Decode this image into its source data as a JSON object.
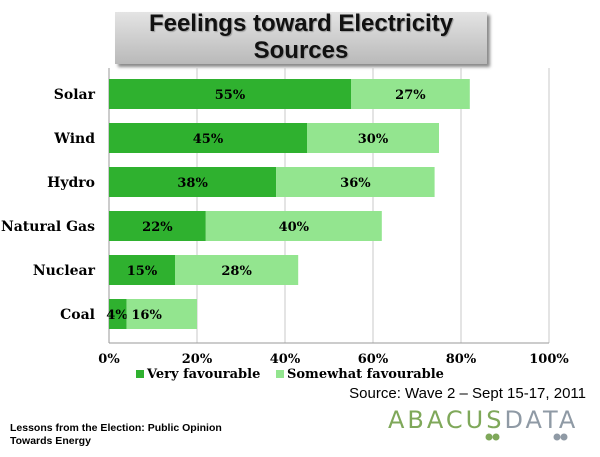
{
  "title": "Feelings toward Electricity Sources",
  "source": "Source: Wave 2 – Sept 15-17, 2011",
  "footer": "Lessons from the Election: Public Opinion Towards Energy",
  "logo": {
    "left": "ABACUS",
    "right": "DATA"
  },
  "colors": {
    "very": "#2fb12f",
    "somewhat": "#93e58f",
    "title_bg": "#c8c8c8",
    "logo_green": "#7fa85a",
    "logo_gray": "#8f9aa5"
  },
  "chart_data": {
    "type": "bar",
    "orientation": "horizontal",
    "stacked": true,
    "title": "Feelings toward Electricity Sources",
    "categories": [
      "Solar",
      "Wind",
      "Hydro",
      "Natural Gas",
      "Nuclear",
      "Coal"
    ],
    "series": [
      {
        "name": "Very favourable",
        "values": [
          55,
          45,
          38,
          22,
          15,
          4
        ],
        "labels": [
          "55%",
          "45%",
          "38%",
          "22%",
          "15%",
          "4%"
        ]
      },
      {
        "name": "Somewhat favourable",
        "values": [
          27,
          30,
          36,
          40,
          28,
          16
        ],
        "labels": [
          "27%",
          "30%",
          "36%",
          "40%",
          "28%",
          "16%"
        ]
      }
    ],
    "xlim": [
      0,
      100
    ],
    "x_ticks": [
      0,
      20,
      40,
      60,
      80,
      100
    ],
    "x_tick_labels": [
      "0%",
      "20%",
      "40%",
      "60%",
      "80%",
      "100%"
    ],
    "grid": true,
    "legend": "bottom"
  }
}
